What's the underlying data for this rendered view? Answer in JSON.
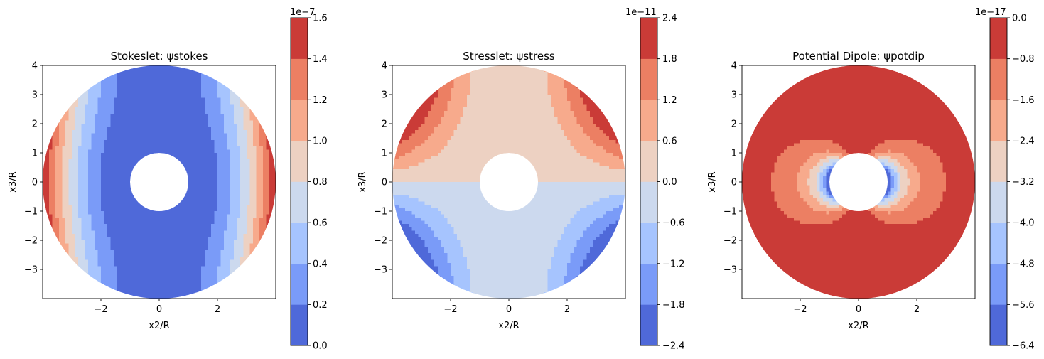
{
  "chart_data": [
    {
      "type": "contour",
      "field": "stokes",
      "title": "Stokeslet: ψstokes",
      "xlabel": "x2/R",
      "ylabel": "x3/R",
      "xlim": [
        -4,
        4
      ],
      "ylim": [
        -4,
        4
      ],
      "xticks": [
        "−2",
        "0",
        "2"
      ],
      "yticks": [
        "4",
        "3",
        "2",
        "1",
        "0",
        "−1",
        "−2",
        "−3"
      ],
      "colorbar_ticks": [
        "0.0",
        "0.2",
        "0.4",
        "0.6",
        "0.8",
        "1.0",
        "1.2",
        "1.4",
        "1.6"
      ],
      "colorbar_offset": "1e−7",
      "levels_range": [
        0.0,
        1.6
      ],
      "inner_radius": 1,
      "outer_radius": 4,
      "colormap": "coolwarm"
    },
    {
      "type": "contour",
      "field": "stress",
      "title": "Stresslet: ψstress",
      "xlabel": "x2/R",
      "ylabel": "x3/R",
      "xlim": [
        -4,
        4
      ],
      "ylim": [
        -4,
        4
      ],
      "xticks": [
        "−2",
        "0",
        "2"
      ],
      "yticks": [
        "4",
        "3",
        "2",
        "1",
        "0",
        "−1",
        "−2",
        "−3"
      ],
      "colorbar_ticks": [
        "−2.4",
        "−1.8",
        "−1.2",
        "−0.6",
        "0.0",
        "0.6",
        "1.2",
        "1.8",
        "2.4"
      ],
      "colorbar_offset": "1e−11",
      "levels_range": [
        -2.4,
        2.4
      ],
      "inner_radius": 1,
      "outer_radius": 4,
      "colormap": "coolwarm"
    },
    {
      "type": "contour",
      "field": "potdip",
      "title": "Potential Dipole: ψpotdip",
      "xlabel": "x2/R",
      "ylabel": "x3/R",
      "xlim": [
        -4,
        4
      ],
      "ylim": [
        -4,
        4
      ],
      "xticks": [
        "−2",
        "0",
        "2"
      ],
      "yticks": [
        "4",
        "3",
        "2",
        "1",
        "0",
        "−1",
        "−2",
        "−3"
      ],
      "colorbar_ticks": [
        "−6.4",
        "−5.6",
        "−4.8",
        "−4.0",
        "−3.2",
        "−2.4",
        "−1.6",
        "−0.8",
        "0.0"
      ],
      "colorbar_offset": "1e−17",
      "levels_range": [
        -6.4,
        0.0
      ],
      "inner_radius": 1,
      "outer_radius": 4,
      "colormap": "coolwarm"
    }
  ],
  "colors": [
    "#4f69d9",
    "#7a9bf8",
    "#a6c4fe",
    "#ccd9ee",
    "#edd1c2",
    "#f7aa8c",
    "#ec7f63",
    "#ca3b37"
  ]
}
